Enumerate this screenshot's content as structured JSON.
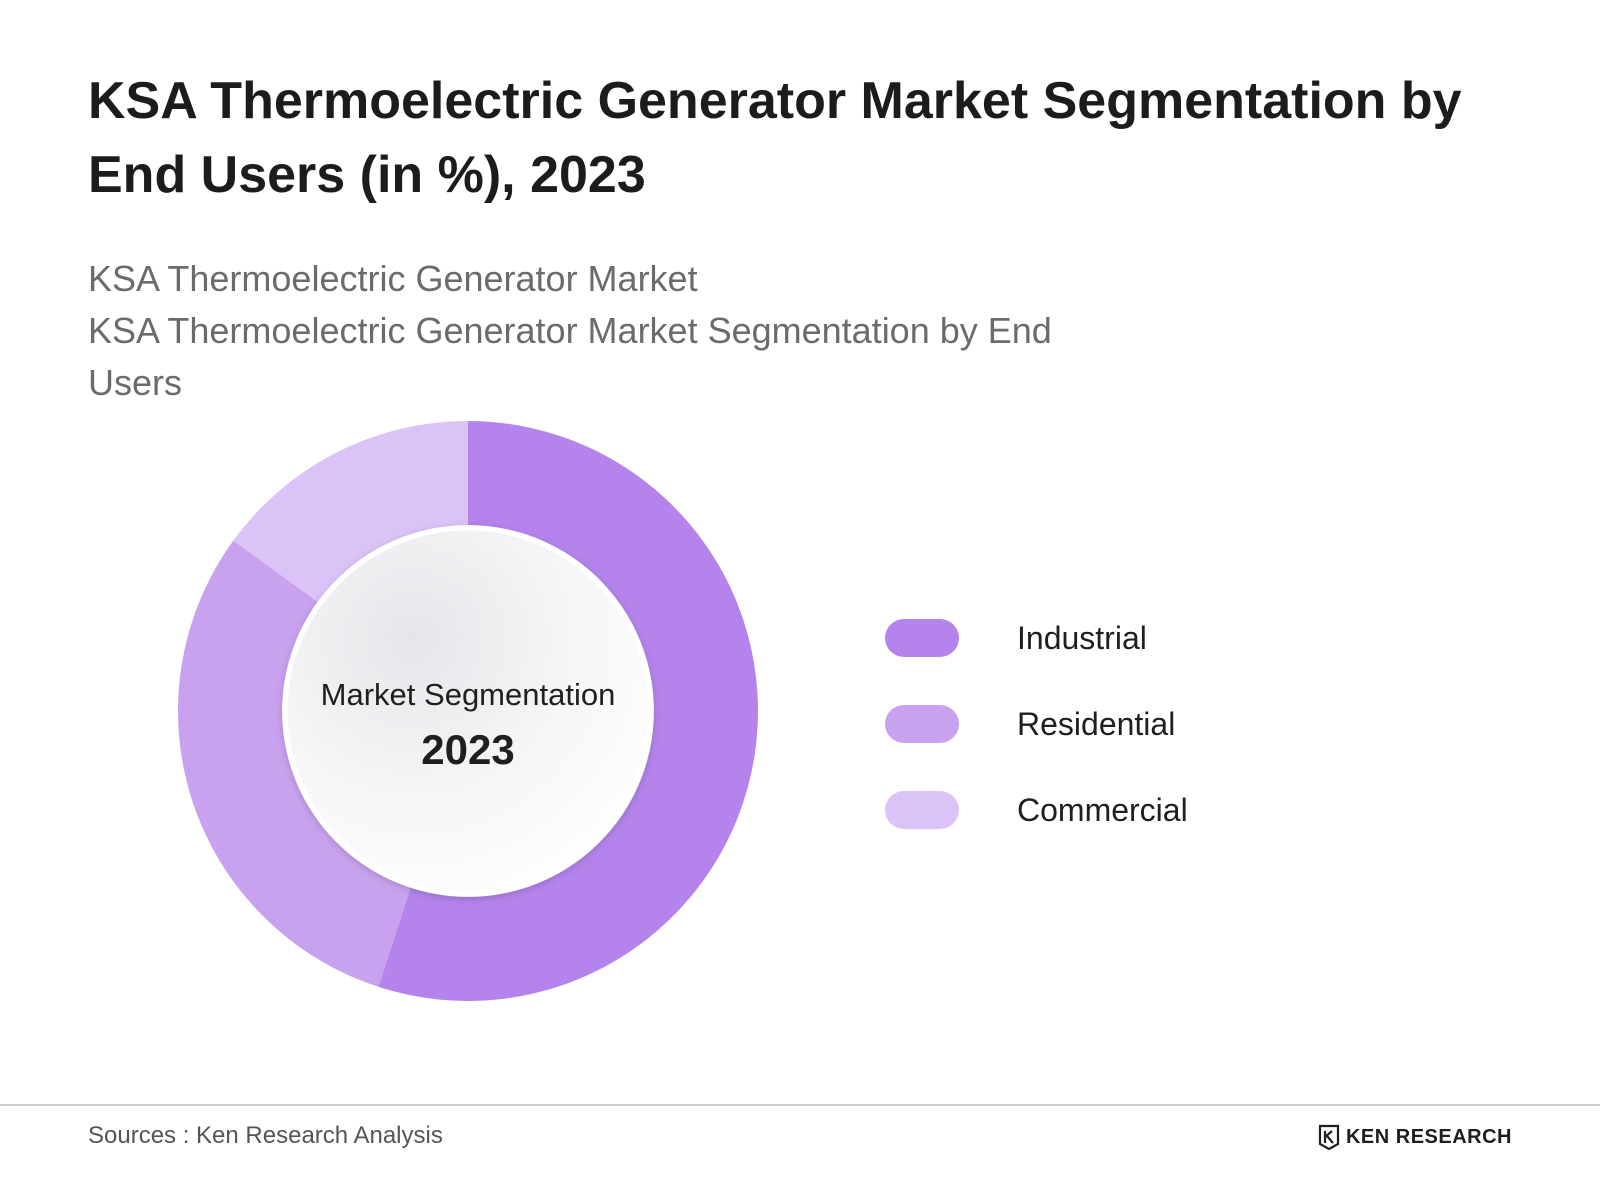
{
  "page": {
    "title": "KSA Thermoelectric Generator Market Segmentation by End Users (in %), 2023",
    "subtitle_line1": "KSA Thermoelectric Generator Market",
    "subtitle_line2": "KSA Thermoelectric Generator Market Segmentation by End Users"
  },
  "chart_data": {
    "type": "pie",
    "donut": true,
    "title": "KSA Thermoelectric Generator Market Segmentation by End Users (in %), 2023",
    "center_label": "Market Segmentation",
    "center_year": "2023",
    "legend_position": "right",
    "categories": [
      "Industrial",
      "Residential",
      "Commercial"
    ],
    "values": [
      55,
      30,
      15
    ],
    "colors": [
      "#b484ec",
      "#c8a2ef",
      "#dcc3f7"
    ]
  },
  "footer": {
    "source": "Sources : Ken Research Analysis",
    "brand": "KEN RESEARCH",
    "brand_logo_icon": "ken-research-logo-icon"
  }
}
